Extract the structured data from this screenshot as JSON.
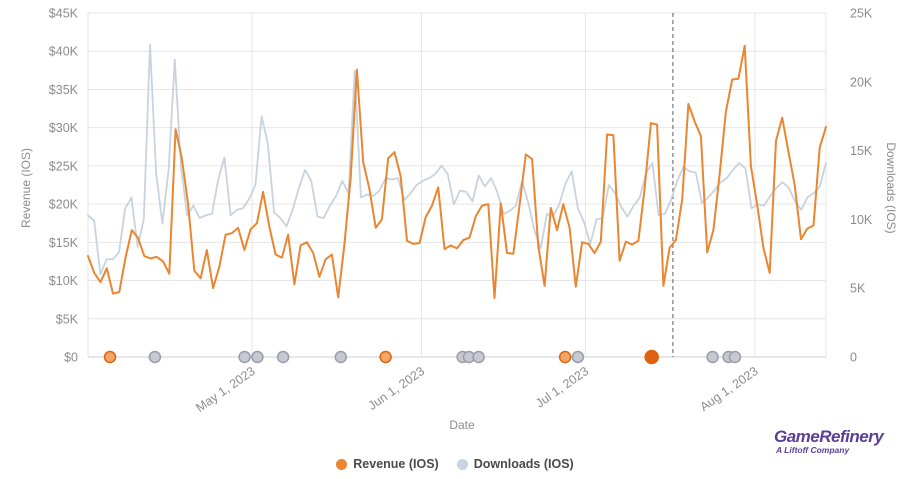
{
  "chart_data": {
    "type": "line",
    "title": "",
    "xlabel": "Date",
    "ylabel_left": "Revenue (IOS)",
    "ylabel_right": "Downloads (IOS)",
    "x_start": "2023-04-01",
    "x_end": "2023-08-14",
    "x_ticks": [
      {
        "date": "2023-05-01",
        "label": "May 1, 2023"
      },
      {
        "date": "2023-06-01",
        "label": "Jun 1, 2023"
      },
      {
        "date": "2023-07-01",
        "label": "Jul 1, 2023"
      },
      {
        "date": "2023-08-01",
        "label": "Aug 1, 2023"
      }
    ],
    "y_left": {
      "min": 0,
      "max": 45000,
      "step": 5000,
      "tick_labels": [
        "$0",
        "$5K",
        "$10K",
        "$15K",
        "$20K",
        "$25K",
        "$30K",
        "$35K",
        "$40K",
        "$45K"
      ]
    },
    "y_right": {
      "min": 0,
      "max": 25000,
      "step": 5000,
      "tick_labels": [
        "0",
        "5K",
        "10K",
        "15K",
        "20K",
        "25K"
      ]
    },
    "grid": true,
    "legend_position": "bottom-center",
    "dashed_marker_date": "2023-07-17",
    "series": [
      {
        "name": "Revenue (IOS)",
        "axis": "left",
        "color": "#ea8530",
        "values": [
          13200,
          11000,
          9800,
          11600,
          8300,
          8500,
          13000,
          16600,
          15600,
          13200,
          12900,
          13100,
          12500,
          10900,
          29800,
          26000,
          20000,
          11300,
          10300,
          14000,
          9000,
          11800,
          16000,
          16200,
          16900,
          14000,
          16700,
          17500,
          21600,
          17000,
          13400,
          13000,
          16000,
          9500,
          14600,
          15000,
          13600,
          10500,
          12800,
          13400,
          7800,
          14700,
          23500,
          37600,
          25500,
          22000,
          16900,
          18000,
          26000,
          26800,
          23600,
          15200,
          14800,
          14900,
          18300,
          19800,
          22200,
          14100,
          14600,
          14200,
          15300,
          15600,
          18400,
          19800,
          20000,
          7700,
          20100,
          13600,
          13500,
          19800,
          26500,
          25900,
          14500,
          9300,
          19500,
          16600,
          20000,
          16900,
          9200,
          15000,
          14800,
          13600,
          15100,
          29100,
          29000,
          12600,
          15100,
          14700,
          15200,
          22000,
          30600,
          30400,
          9300,
          14300,
          15300,
          20600,
          33100,
          30800,
          28900,
          13700,
          16600,
          24000,
          32100,
          36300,
          36400,
          40700,
          25000,
          19900,
          14200,
          11000,
          28300,
          31300,
          26800,
          22500,
          15400,
          16800,
          17200,
          27400,
          30100
        ]
      },
      {
        "name": "Downloads (IOS)",
        "axis": "right",
        "color": "#c8d3de",
        "values": [
          10300,
          9900,
          6000,
          7100,
          7100,
          7600,
          10800,
          11600,
          8000,
          10000,
          22700,
          13300,
          9700,
          13600,
          21600,
          13800,
          10300,
          11000,
          10100,
          10300,
          10400,
          12900,
          14500,
          10300,
          10700,
          10800,
          11500,
          12500,
          17500,
          15500,
          10500,
          10100,
          9500,
          10700,
          12300,
          13600,
          12800,
          10200,
          10100,
          11000,
          11700,
          12800,
          11900,
          20800,
          11600,
          11800,
          11700,
          12100,
          13000,
          12900,
          13000,
          11400,
          11900,
          12500,
          12800,
          13000,
          13300,
          13900,
          13300,
          11100,
          12100,
          12000,
          11300,
          13200,
          12400,
          13000,
          12000,
          10400,
          10600,
          11000,
          12800,
          11200,
          9200,
          7900,
          10400,
          10200,
          11100,
          12600,
          13500,
          10800,
          9800,
          8200,
          10000,
          10100,
          12500,
          11900,
          10900,
          10200,
          11000,
          11600,
          13400,
          14100,
          10300,
          10400,
          11400,
          12800,
          13800,
          13500,
          13400,
          11200,
          11600,
          12100,
          12700,
          13000,
          13600,
          14100,
          13700,
          10800,
          11100,
          11000,
          11700,
          12300,
          12700,
          12300,
          11300,
          10700,
          11600,
          11900,
          12400,
          14100
        ]
      }
    ],
    "event_markers": [
      {
        "date": "2023-04-07",
        "type": "revenue"
      },
      {
        "date": "2023-04-21",
        "type": "downloads"
      },
      {
        "date": "2023-05-19",
        "type": "downloads"
      },
      {
        "date": "2023-05-23",
        "type": "downloads"
      },
      {
        "date": "2023-05-31",
        "type": "downloads"
      },
      {
        "date": "2023-06-18",
        "type": "downloads"
      },
      {
        "date": "2023-07-02",
        "type": "revenue"
      },
      {
        "date": "2023-07-26",
        "type": "downloads"
      },
      {
        "date": "2023-07-28",
        "type": "downloads"
      },
      {
        "date": "2023-07-31",
        "type": "downloads"
      },
      {
        "date": "2023-08-27",
        "type": "revenue"
      },
      {
        "date": "2023-08-31",
        "type": "downloads"
      },
      {
        "date": "2023-09-23",
        "type": "revenue-selected"
      },
      {
        "date": "2023-10-12",
        "type": "downloads"
      },
      {
        "date": "2023-10-17",
        "type": "downloads"
      },
      {
        "date": "2023-10-19",
        "type": "downloads"
      }
    ]
  },
  "legend": {
    "revenue_label": "Revenue (IOS)",
    "downloads_label": "Downloads (IOS)"
  },
  "brand": {
    "name": "GameRefinery",
    "sub": "A Liftoff Company"
  },
  "colors": {
    "revenue": "#ea8530",
    "revenue_selected": "#e0620f",
    "downloads": "#c8d3de",
    "marker_downloads": "#c6c9d1",
    "marker_stroke": "#9a9da7",
    "grid": "#e6e6e6",
    "brand": "#5b3f97"
  }
}
